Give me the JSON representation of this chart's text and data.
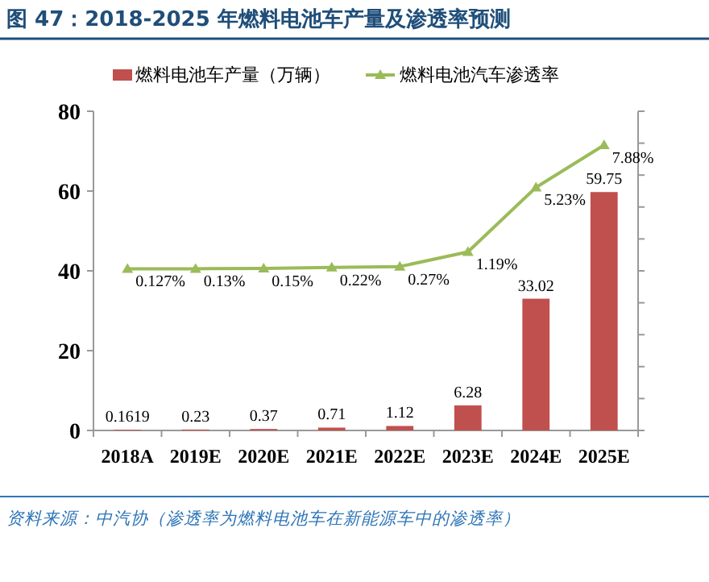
{
  "chart_data": {
    "type": "bar",
    "title": "图 47：2018-2025 年燃料电池车产量及渗透率预测",
    "categories": [
      "2018A",
      "2019E",
      "2020E",
      "2021E",
      "2022E",
      "2023E",
      "2024E",
      "2025E"
    ],
    "series": [
      {
        "name": "燃料电池车产量（万辆）",
        "color": "#c0504d",
        "values": [
          0.1619,
          0.23,
          0.37,
          0.71,
          1.12,
          6.28,
          33.02,
          59.75
        ]
      },
      {
        "name": "燃料电池汽车渗透率",
        "type": "line",
        "axis": "y2",
        "color": "#9bbb59",
        "marker": "triangle",
        "values": [
          0.127,
          0.13,
          0.15,
          0.22,
          0.27,
          1.19,
          5.23,
          7.88
        ],
        "value_labels": [
          "0.127%",
          "0.13%",
          "0.15%",
          "0.22%",
          "0.27%",
          "1.19%",
          "5.23%",
          "7.88%"
        ]
      }
    ],
    "data_labels": true,
    "ylim": [
      0,
      80
    ],
    "yticks": [
      0,
      20,
      40,
      60,
      80
    ],
    "y2lim": [
      -10,
      10
    ],
    "y2ticks": [
      {
        "value": -10,
        "label": null
      },
      {
        "value": -8,
        "label": null
      },
      {
        "value": -6,
        "label": null
      },
      {
        "value": -4,
        "label": null
      },
      {
        "value": -2,
        "label": null
      },
      {
        "value": 0,
        "label": null
      },
      {
        "value": 2,
        "label": null
      },
      {
        "value": 4,
        "label": null
      },
      {
        "value": 6,
        "label": null
      },
      {
        "value": 8,
        "label": null
      },
      {
        "value": 10,
        "label": null
      }
    ],
    "legend": "top",
    "annotations": [
      "资料来源：中汽协（渗透率为燃料电池车在新能源车中的渗透率）"
    ]
  }
}
